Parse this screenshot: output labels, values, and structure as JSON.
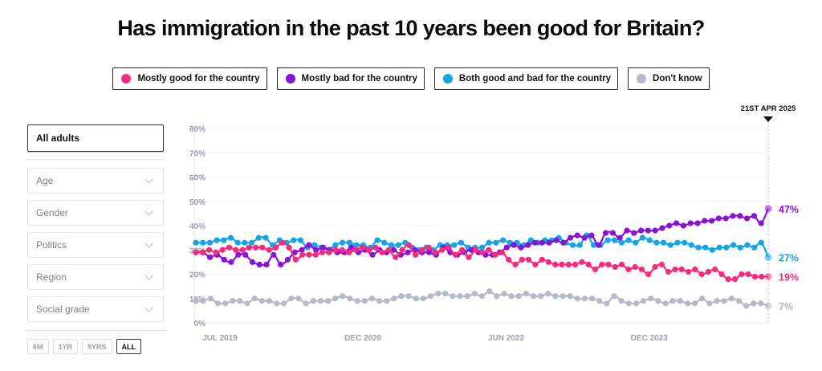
{
  "title": "Has immigration in the past 10 years been good for Britain?",
  "legend": [
    {
      "label": "Mostly good for the country",
      "color": "#f72b7d"
    },
    {
      "label": "Mostly bad for the country",
      "color": "#8a12d6"
    },
    {
      "label": "Both good and bad for the country",
      "color": "#12a6e8"
    },
    {
      "label": "Don't know",
      "color": "#b5b9c8"
    }
  ],
  "sidebar": {
    "selected": "All adults",
    "filters": [
      {
        "label": "Age",
        "icon": "chevron-down-icon"
      },
      {
        "label": "Gender",
        "icon": "chevron-down-icon"
      },
      {
        "label": "Politics",
        "icon": "chevron-down-icon"
      },
      {
        "label": "Region",
        "icon": "chevron-down-icon"
      },
      {
        "label": "Social grade",
        "icon": "chevron-down-icon"
      }
    ],
    "ranges": [
      {
        "label": "6M",
        "active": false
      },
      {
        "label": "1YR",
        "active": false
      },
      {
        "label": "5YRS",
        "active": false
      },
      {
        "label": "ALL",
        "active": true
      }
    ]
  },
  "chart_data": {
    "type": "line",
    "title": "Has immigration in the past 10 years been good for Britain?",
    "xlabel": "",
    "ylabel": "",
    "ylim": [
      0,
      80
    ],
    "yticks": [
      "0%",
      "10%",
      "20%",
      "30%",
      "40%",
      "50%",
      "60%",
      "70%",
      "80%"
    ],
    "xtick_labels": [
      "JUL 2019",
      "DEC 2020",
      "JUN 2022",
      "DEC 2023"
    ],
    "xtick_positions": [
      0,
      0.25,
      0.5,
      0.75
    ],
    "grid": true,
    "legend_position": "top-center",
    "current_date_label": "21ST APR 2025",
    "series": [
      {
        "name": "Mostly good for the country",
        "color": "#f72b7d",
        "end_label": "19%",
        "values": [
          29,
          29,
          30,
          29,
          30,
          31,
          30,
          30,
          31,
          31,
          31,
          30,
          31,
          33,
          31,
          26,
          28,
          28,
          28,
          29,
          29,
          30,
          30,
          29,
          30,
          31,
          30,
          31,
          29,
          30,
          27,
          30,
          32,
          28,
          30,
          31,
          29,
          30,
          31,
          28,
          30,
          27,
          30,
          29,
          30,
          28,
          29,
          26,
          24,
          26,
          26,
          24,
          26,
          25,
          24,
          24,
          24,
          24,
          25,
          24,
          22,
          24,
          24,
          23,
          24,
          22,
          23,
          22,
          20,
          23,
          24,
          21,
          22,
          22,
          21,
          22,
          20,
          21,
          22,
          20,
          18,
          18,
          20,
          20,
          19,
          19,
          19
        ]
      },
      {
        "name": "Mostly bad for the country",
        "color": "#8a12d6",
        "end_label": "47%",
        "values": [
          29,
          29,
          27,
          28,
          26,
          25,
          28,
          28,
          25,
          24,
          24,
          28,
          24,
          26,
          29,
          30,
          32,
          30,
          31,
          30,
          29,
          29,
          31,
          29,
          30,
          28,
          30,
          29,
          30,
          28,
          29,
          30,
          29,
          29,
          28,
          31,
          29,
          28,
          29,
          30,
          29,
          28,
          28,
          29,
          31,
          32,
          31,
          32,
          33,
          33,
          33,
          34,
          33,
          35,
          36,
          35,
          36,
          32,
          37,
          37,
          35,
          38,
          37,
          38,
          38,
          38,
          39,
          40,
          41,
          40,
          41,
          41,
          42,
          42,
          43,
          43,
          44,
          44,
          43,
          44,
          41,
          47
        ]
      },
      {
        "name": "Both good and bad for the country",
        "color": "#12a6e8",
        "end_label": "27%",
        "values": [
          33,
          33,
          33,
          34,
          34,
          35,
          33,
          33,
          33,
          35,
          35,
          32,
          34,
          33,
          34,
          34,
          31,
          32,
          31,
          30,
          32,
          33,
          33,
          32,
          32,
          31,
          34,
          33,
          32,
          32,
          33,
          31,
          30,
          31,
          30,
          32,
          32,
          32,
          33,
          31,
          31,
          31,
          33,
          33,
          34,
          33,
          33,
          32,
          34,
          33,
          34,
          34,
          35,
          33,
          32,
          32,
          36,
          32,
          32,
          34,
          34,
          33,
          34,
          33,
          35,
          34,
          33,
          33,
          32,
          33,
          33,
          32,
          31,
          31,
          30,
          31,
          31,
          32,
          31,
          32,
          31,
          33,
          27
        ]
      },
      {
        "name": "Don't know",
        "color": "#b5b9c8",
        "end_label": "7%",
        "values": [
          9,
          9,
          10,
          8,
          8,
          9,
          9,
          8,
          10,
          9,
          9,
          8,
          8,
          10,
          10,
          8,
          9,
          9,
          9,
          10,
          11,
          10,
          9,
          9,
          10,
          9,
          9,
          10,
          11,
          11,
          10,
          10,
          11,
          12,
          12,
          11,
          11,
          11,
          12,
          11,
          13,
          11,
          12,
          11,
          11,
          12,
          11,
          11,
          12,
          11,
          11,
          11,
          10,
          10,
          10,
          9,
          8,
          11,
          9,
          8,
          8,
          9,
          10,
          9,
          8,
          9,
          9,
          8,
          8,
          10,
          8,
          9,
          9,
          10,
          9,
          7,
          8,
          8,
          7
        ]
      }
    ]
  }
}
